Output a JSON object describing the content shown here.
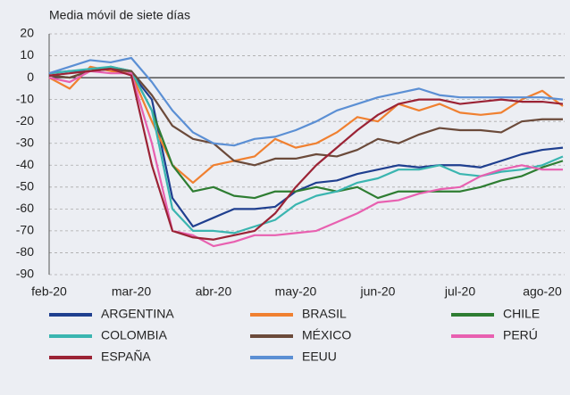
{
  "chart_data": {
    "type": "line",
    "y_label": "Media móvil de siete días",
    "categories": [
      "feb-20",
      null,
      null,
      null,
      "mar-20",
      null,
      null,
      null,
      "abr-20",
      null,
      null,
      null,
      "may-20",
      null,
      null,
      null,
      "jun-20",
      null,
      null,
      null,
      "jul-20",
      null,
      null,
      null,
      "ago-20",
      null
    ],
    "ylim": [
      -90,
      20
    ],
    "yticks": [
      20,
      10,
      0,
      -10,
      -20,
      -30,
      -40,
      -50,
      -60,
      -70,
      -80,
      -90
    ],
    "grid": true,
    "legend": "bottom",
    "series": [
      {
        "name": "ARGENTINA",
        "color": "#1f3f8f",
        "values": [
          2,
          3,
          3,
          4,
          2,
          -10,
          -55,
          -68,
          -64,
          -60,
          -60,
          -59,
          -52,
          -48,
          -47,
          -44,
          -42,
          -40,
          -41,
          -40,
          -40,
          -41,
          -38,
          -35,
          -33,
          -32
        ]
      },
      {
        "name": "BRASIL",
        "color": "#f08030",
        "values": [
          0,
          -5,
          5,
          3,
          2,
          -20,
          -40,
          -48,
          -40,
          -38,
          -36,
          -28,
          -32,
          -30,
          -25,
          -18,
          -20,
          -12,
          -15,
          -12,
          -16,
          -17,
          -16,
          -10,
          -6,
          -13
        ]
      },
      {
        "name": "CHILE",
        "color": "#2e7d32",
        "values": [
          1,
          0,
          3,
          5,
          3,
          -15,
          -40,
          -52,
          -50,
          -54,
          -55,
          -52,
          -52,
          -50,
          -52,
          -50,
          -55,
          -52,
          -52,
          -52,
          -52,
          -50,
          -47,
          -45,
          -41,
          -38
        ]
      },
      {
        "name": "COLOMBIA",
        "color": "#3ab5b0",
        "values": [
          2,
          3,
          4,
          5,
          3,
          -15,
          -60,
          -70,
          -70,
          -71,
          -68,
          -65,
          -58,
          -54,
          -52,
          -48,
          -46,
          -42,
          -42,
          -40,
          -44,
          -45,
          -43,
          -42,
          -40,
          -36
        ]
      },
      {
        "name": "MÉXICO",
        "color": "#6b4a3a",
        "values": [
          1,
          0,
          3,
          4,
          3,
          -8,
          -22,
          -28,
          -30,
          -38,
          -40,
          -37,
          -37,
          -35,
          -36,
          -33,
          -28,
          -30,
          -26,
          -23,
          -24,
          -24,
          -25,
          -20,
          -19,
          -19
        ]
      },
      {
        "name": "PERÚ",
        "color": "#e860b0",
        "values": [
          0,
          -2,
          3,
          2,
          2,
          -30,
          -70,
          -72,
          -77,
          -75,
          -72,
          -72,
          -71,
          -70,
          -66,
          -62,
          -57,
          -56,
          -53,
          -51,
          -50,
          -45,
          -42,
          -40,
          -42,
          -42
        ]
      },
      {
        "name": "ESPAÑA",
        "color": "#9b2335",
        "values": [
          1,
          2,
          3,
          4,
          1,
          -40,
          -70,
          -73,
          -74,
          -72,
          -70,
          -62,
          -50,
          -40,
          -32,
          -24,
          -17,
          -12,
          -10,
          -10,
          -12,
          -11,
          -10,
          -11,
          -11,
          -12
        ]
      },
      {
        "name": "EEUU",
        "color": "#5b8fd4",
        "values": [
          2,
          5,
          8,
          7,
          9,
          -2,
          -15,
          -25,
          -30,
          -31,
          -28,
          -27,
          -24,
          -20,
          -15,
          -12,
          -9,
          -7,
          -5,
          -8,
          -9,
          -9,
          -9,
          -9,
          -9,
          -10
        ]
      }
    ]
  }
}
